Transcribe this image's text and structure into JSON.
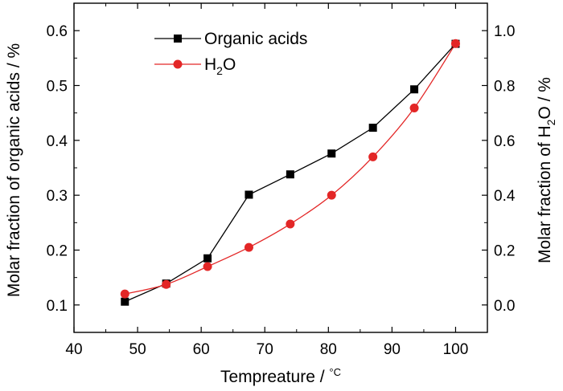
{
  "chart_data": {
    "type": "line",
    "xlabel": "Tempreature / ",
    "xlabel_unit": "°C",
    "ylabel_left": "Molar fraction of organic acids / %",
    "ylabel_right_prefix": "Molar fraction of  H",
    "ylabel_right_sub": "2",
    "ylabel_right_suffix": "O / %",
    "xlim": [
      40,
      105
    ],
    "ylim_left": [
      0.05,
      0.65
    ],
    "ylim_right": [
      -0.1,
      1.1
    ],
    "x_ticks": [
      "40",
      "50",
      "60",
      "70",
      "80",
      "90",
      "100"
    ],
    "y_left_ticks": [
      "0.1",
      "0.2",
      "0.3",
      "0.4",
      "0.5",
      "0.6"
    ],
    "y_right_ticks": [
      "0.0",
      "0.2",
      "0.4",
      "0.6",
      "0.8",
      "1.0"
    ],
    "legend_position": "top-left",
    "series": [
      {
        "name": "Organic acids",
        "axis": "left",
        "marker": "square",
        "color": "#000000",
        "x": [
          48,
          54.5,
          61,
          67.5,
          74,
          80.5,
          87,
          93.5,
          100
        ],
        "y": [
          0.106,
          0.139,
          0.185,
          0.301,
          0.338,
          0.376,
          0.423,
          0.493,
          0.576
        ]
      },
      {
        "name_prefix": "H",
        "name_sub": "2",
        "name_suffix": "O",
        "axis": "right",
        "marker": "circle",
        "color": "#e32626",
        "x": [
          48,
          54.5,
          61,
          67.5,
          74,
          80.5,
          87,
          93.5,
          100
        ],
        "y": [
          0.04,
          0.075,
          0.14,
          0.21,
          0.295,
          0.4,
          0.54,
          0.718,
          0.953
        ]
      }
    ]
  }
}
